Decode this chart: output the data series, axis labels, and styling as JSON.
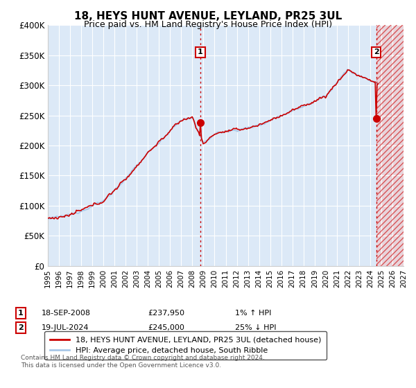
{
  "title": "18, HEYS HUNT AVENUE, LEYLAND, PR25 3UL",
  "subtitle": "Price paid vs. HM Land Registry's House Price Index (HPI)",
  "ylabel_ticks": [
    "£0",
    "£50K",
    "£100K",
    "£150K",
    "£200K",
    "£250K",
    "£300K",
    "£350K",
    "£400K"
  ],
  "ytick_vals": [
    0,
    50000,
    100000,
    150000,
    200000,
    250000,
    300000,
    350000,
    400000
  ],
  "ylim": [
    0,
    400000
  ],
  "xlim_start": 1995,
  "xlim_end": 2027,
  "fig_bg_color": "#ffffff",
  "plot_bg_color": "#dce9f7",
  "grid_color": "#ffffff",
  "hpi_line_color": "#a8c8e8",
  "price_line_color": "#cc0000",
  "marker1_year": 2008.72,
  "marker2_year": 2024.55,
  "marker1_price": 237950,
  "marker2_price": 245000,
  "legend_line1": "18, HEYS HUNT AVENUE, LEYLAND, PR25 3UL (detached house)",
  "legend_line2": "HPI: Average price, detached house, South Ribble",
  "footer": "Contains HM Land Registry data © Crown copyright and database right 2024.\nThis data is licensed under the Open Government Licence v3.0."
}
